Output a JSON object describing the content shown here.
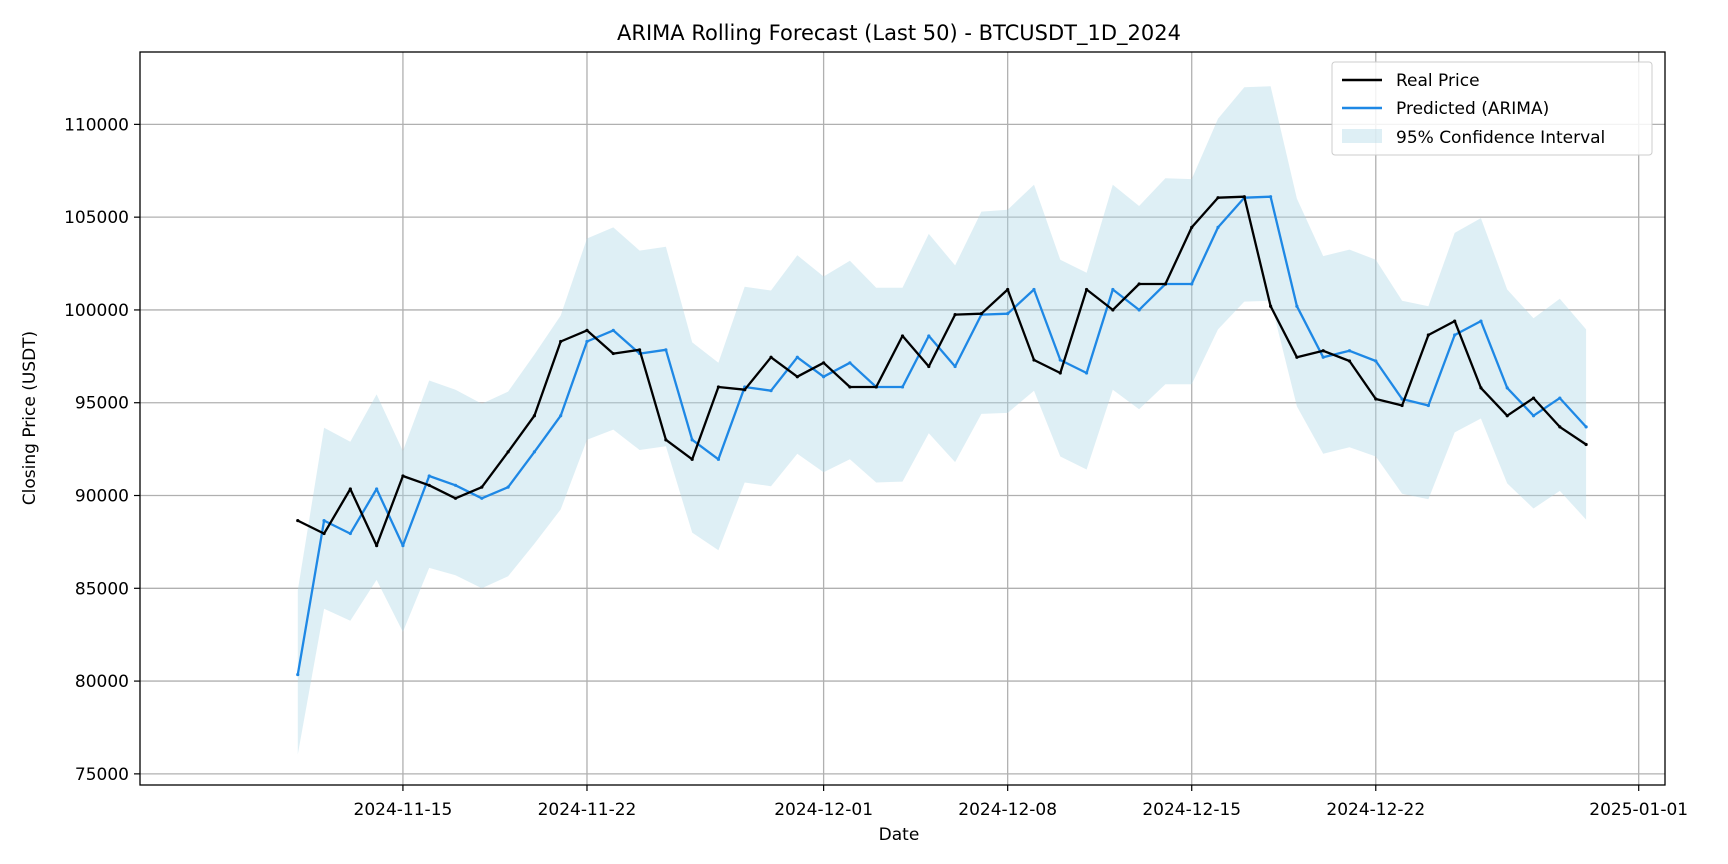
{
  "chart_data": {
    "type": "line",
    "title": "ARIMA Rolling Forecast (Last 50) - BTCUSDT_1D_2024",
    "xlabel": "Date",
    "ylabel": "Closing Price (USDT)",
    "ylim": [
      74400,
      113900
    ],
    "xlim": [
      "2024-11-05",
      "2025-01-02"
    ],
    "grid": true,
    "legend_position": "top-right",
    "y_ticks": [
      75000,
      80000,
      85000,
      90000,
      95000,
      100000,
      105000,
      110000
    ],
    "x_ticks": [
      "2024-11-15",
      "2024-11-22",
      "2024-12-01",
      "2024-12-08",
      "2024-12-15",
      "2024-12-22",
      "2025-01-01"
    ],
    "x": [
      "2024-11-11",
      "2024-11-12",
      "2024-11-13",
      "2024-11-14",
      "2024-11-15",
      "2024-11-16",
      "2024-11-17",
      "2024-11-18",
      "2024-11-19",
      "2024-11-20",
      "2024-11-21",
      "2024-11-22",
      "2024-11-23",
      "2024-11-24",
      "2024-11-25",
      "2024-11-26",
      "2024-11-27",
      "2024-11-28",
      "2024-11-29",
      "2024-11-30",
      "2024-12-01",
      "2024-12-02",
      "2024-12-03",
      "2024-12-04",
      "2024-12-05",
      "2024-12-06",
      "2024-12-07",
      "2024-12-08",
      "2024-12-09",
      "2024-12-10",
      "2024-12-11",
      "2024-12-12",
      "2024-12-13",
      "2024-12-14",
      "2024-12-15",
      "2024-12-16",
      "2024-12-17",
      "2024-12-18",
      "2024-12-19",
      "2024-12-20",
      "2024-12-21",
      "2024-12-22",
      "2024-12-23",
      "2024-12-24",
      "2024-12-25",
      "2024-12-26",
      "2024-12-27",
      "2024-12-28",
      "2024-12-29",
      "2024-12-30"
    ],
    "series": [
      {
        "name": "Real Price",
        "color": "#000000",
        "values": [
          88650,
          87950,
          90350,
          87300,
          91050,
          90550,
          89850,
          90450,
          92350,
          94300,
          98300,
          98900,
          97650,
          97850,
          93000,
          91950,
          95850,
          95700,
          97450,
          96400,
          97150,
          95850,
          95850,
          98600,
          96950,
          99750,
          99800,
          101100,
          97300,
          96600,
          101100,
          100000,
          101400,
          101400,
          104450,
          106050,
          106100,
          100200,
          97450,
          97800,
          97250,
          95200,
          94850,
          98650,
          99400,
          95800,
          94300,
          95250,
          93700,
          92750
        ]
      },
      {
        "name": "Predicted (ARIMA)",
        "color": "#1e88e5",
        "values": [
          80350,
          88650,
          87950,
          90350,
          87300,
          91050,
          90550,
          89850,
          90450,
          92350,
          94300,
          98300,
          98900,
          97650,
          97850,
          93000,
          91950,
          95850,
          95650,
          97450,
          96400,
          97150,
          95850,
          95850,
          98600,
          96950,
          99750,
          99800,
          101100,
          97300,
          96600,
          101100,
          100000,
          101400,
          101400,
          104450,
          106050,
          106100,
          100200,
          97450,
          97800,
          97250,
          95200,
          94850,
          98650,
          99400,
          95800,
          94300,
          95250,
          93700
        ]
      }
    ],
    "confidence_interval": {
      "name": "95% Confidence Interval",
      "color": "#add8e6",
      "lower": [
        76050,
        83900,
        83250,
        85450,
        82650,
        86100,
        85700,
        85000,
        85650,
        87400,
        89250,
        93000,
        93550,
        92450,
        92650,
        88000,
        87050,
        90700,
        90500,
        92250,
        91250,
        91950,
        90700,
        90750,
        93350,
        91800,
        94400,
        94450,
        95650,
        92100,
        91400,
        95700,
        94650,
        96000,
        96000,
        98950,
        100450,
        100500,
        94800,
        92250,
        92600,
        92100,
        90100,
        89800,
        93400,
        94150,
        90650,
        89300,
        90250,
        88700
      ],
      "upper": [
        84900,
        93650,
        92900,
        95450,
        92400,
        96200,
        95700,
        94950,
        95600,
        97600,
        99700,
        103850,
        104450,
        103200,
        103400,
        98250,
        97150,
        101250,
        101050,
        102950,
        101800,
        102650,
        101200,
        101200,
        104100,
        102400,
        105300,
        105400,
        106750,
        102700,
        102000,
        106750,
        105600,
        107100,
        107050,
        110300,
        112000,
        112050,
        106000,
        102900,
        103250,
        102700,
        100500,
        100200,
        104150,
        104950,
        101100,
        99550,
        100600,
        98950
      ]
    }
  }
}
